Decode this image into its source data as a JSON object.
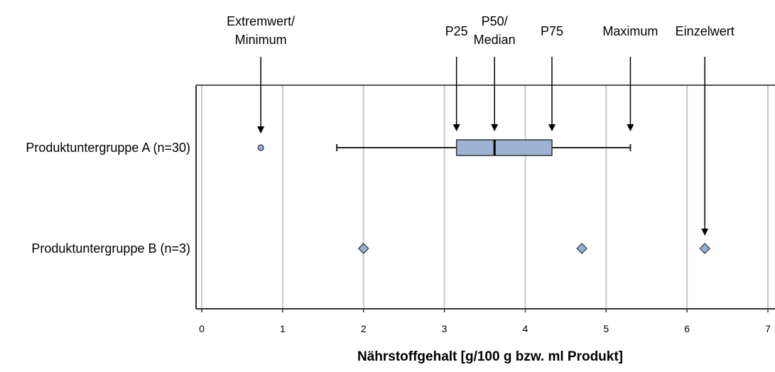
{
  "chart_data": {
    "type": "boxplot",
    "xlabel": "Nährstoffgehalt [g/100 g bzw. ml Produkt]",
    "xlim": [
      0,
      7
    ],
    "xticks": [
      0,
      1,
      2,
      3,
      4,
      5,
      6,
      7
    ],
    "grid": "vertical",
    "categories": [
      "Produktuntergruppe A (n=30)",
      "Produktuntergruppe B (n=3)"
    ],
    "box": {
      "category": "Produktuntergruppe A (n=30)",
      "whisker_low": 1.67,
      "p25": 3.15,
      "median": 3.62,
      "p75": 4.33,
      "whisker_high": 5.3,
      "outliers": [
        0.73
      ]
    },
    "single_values": {
      "category": "Produktuntergruppe B (n=3)",
      "values": [
        2.0,
        4.7,
        6.22
      ]
    },
    "colors": {
      "box_fill": "#9db3d3",
      "marker_fill": "#94aed2",
      "grid": "#c8c8c8",
      "axis": "#555555"
    },
    "annotations": [
      {
        "id": "extremwert",
        "lines": [
          "Extremwert/",
          "Minimum"
        ],
        "x": 0.73,
        "target": "outlier"
      },
      {
        "id": "p25",
        "lines": [
          "P25"
        ],
        "x": 3.15,
        "target": "box"
      },
      {
        "id": "p50",
        "lines": [
          "P50/",
          "Median"
        ],
        "x": 3.62,
        "target": "box"
      },
      {
        "id": "p75",
        "lines": [
          "P75"
        ],
        "x": 4.33,
        "target": "box"
      },
      {
        "id": "maximum",
        "lines": [
          "Maximum"
        ],
        "x": 5.3,
        "target": "whisker"
      },
      {
        "id": "einzelwert",
        "lines": [
          "Einzelwert"
        ],
        "x": 6.22,
        "target": "single"
      }
    ]
  }
}
